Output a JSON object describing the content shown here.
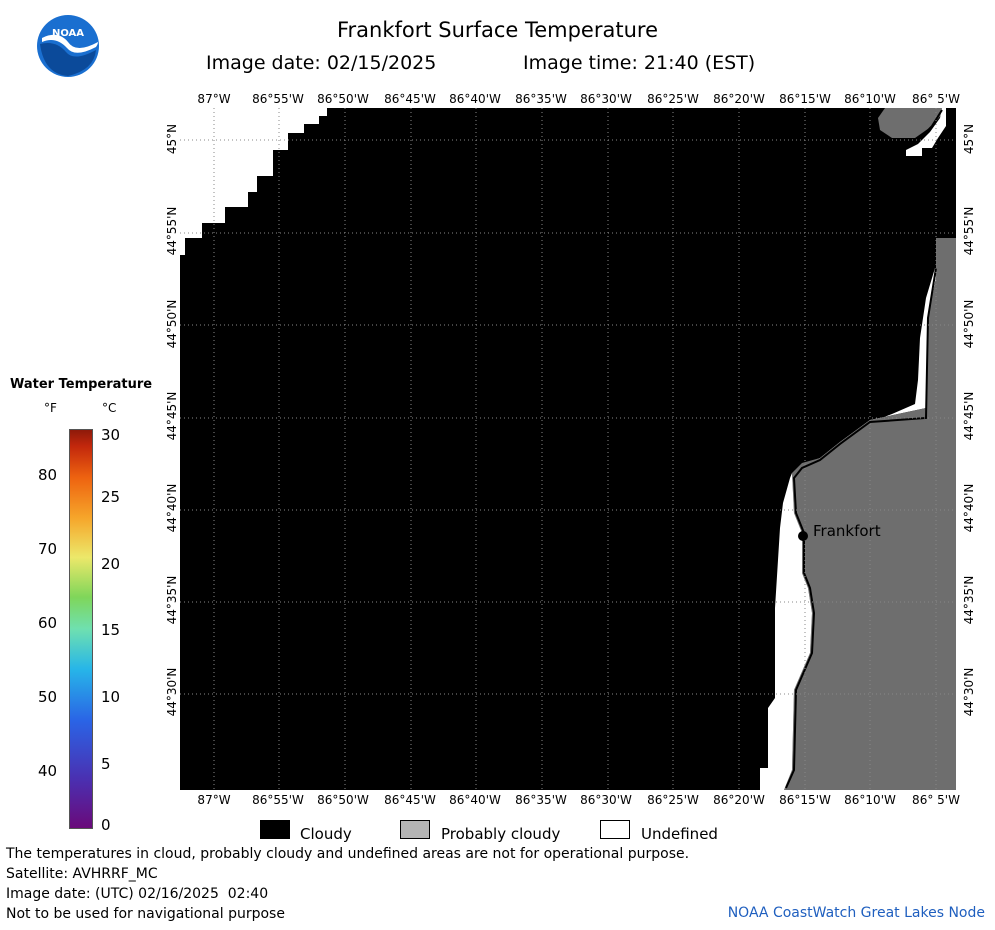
{
  "header": {
    "title": "Frankfort Surface Temperature",
    "image_date": "Image date: 02/15/2025",
    "image_time": "Image time: 21:40 (EST)"
  },
  "logo": {
    "text": "NOAA"
  },
  "map": {
    "lon_labels": [
      "87°W",
      "86°55'W",
      "86°50'W",
      "86°45'W",
      "86°40'W",
      "86°35'W",
      "86°30'W",
      "86°25'W",
      "86°20'W",
      "86°15'W",
      "86°10'W",
      "86° 5'W"
    ],
    "lat_labels": [
      "45°N",
      "44°55'N",
      "44°50'N",
      "44°45'N",
      "44°40'N",
      "44°35'N",
      "44°30'N"
    ],
    "place_label": "Frankfort",
    "colors": {
      "cloudy": "#000000",
      "probably_cloudy": "#6e6e6e",
      "undefined": "#ffffff",
      "grid": "#777777"
    }
  },
  "legend": {
    "title": "Water Temperature",
    "unit_f": "°F",
    "unit_c": "°C",
    "f_ticks": [
      "80",
      "70",
      "60",
      "50",
      "40"
    ],
    "c_ticks": [
      "30",
      "25",
      "20",
      "15",
      "10",
      "5",
      "0"
    ]
  },
  "key": {
    "cloudy": "Cloudy",
    "probably_cloudy": "Probably cloudy",
    "undefined": "Undefined"
  },
  "footer": {
    "line1": "The temperatures in cloud, probably cloudy and undefined areas are not for operational purpose.",
    "line2": "Satellite: AVHRRF_MC",
    "line3": "Image date: (UTC) 02/16/2025  02:40",
    "line4": "Not to be used for navigational purpose",
    "credit": "NOAA CoastWatch Great Lakes Node"
  }
}
